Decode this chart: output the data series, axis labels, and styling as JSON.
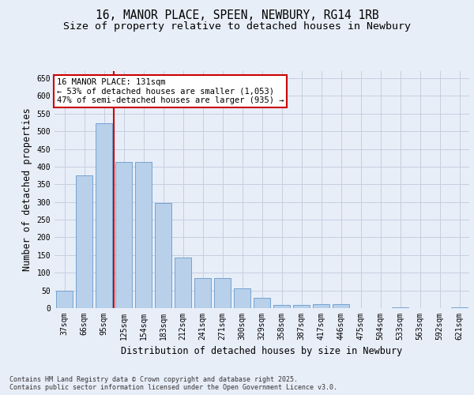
{
  "title_line1": "16, MANOR PLACE, SPEEN, NEWBURY, RG14 1RB",
  "title_line2": "Size of property relative to detached houses in Newbury",
  "xlabel": "Distribution of detached houses by size in Newbury",
  "ylabel": "Number of detached properties",
  "categories": [
    "37sqm",
    "66sqm",
    "95sqm",
    "125sqm",
    "154sqm",
    "183sqm",
    "212sqm",
    "241sqm",
    "271sqm",
    "300sqm",
    "329sqm",
    "358sqm",
    "387sqm",
    "417sqm",
    "446sqm",
    "475sqm",
    "504sqm",
    "533sqm",
    "563sqm",
    "592sqm",
    "621sqm"
  ],
  "values": [
    50,
    375,
    522,
    413,
    413,
    297,
    144,
    84,
    84,
    55,
    30,
    10,
    8,
    12,
    12,
    1,
    0,
    3,
    0,
    1,
    3
  ],
  "bar_color": "#b8d0ea",
  "bar_edge_color": "#6699cc",
  "vline_color": "#cc0000",
  "annotation_text": "16 MANOR PLACE: 131sqm\n← 53% of detached houses are smaller (1,053)\n47% of semi-detached houses are larger (935) →",
  "annotation_box_color": "#ffffff",
  "annotation_box_edge_color": "#cc0000",
  "ylim": [
    0,
    670
  ],
  "yticks": [
    0,
    50,
    100,
    150,
    200,
    250,
    300,
    350,
    400,
    450,
    500,
    550,
    600,
    650
  ],
  "footer_text": "Contains HM Land Registry data © Crown copyright and database right 2025.\nContains public sector information licensed under the Open Government Licence v3.0.",
  "bg_color": "#e8eef8",
  "plot_bg_color": "#e8eef8",
  "grid_color": "#c5cfe0",
  "title_fontsize": 10.5,
  "subtitle_fontsize": 9.5,
  "tick_fontsize": 7,
  "label_fontsize": 8.5,
  "footer_fontsize": 6.0
}
